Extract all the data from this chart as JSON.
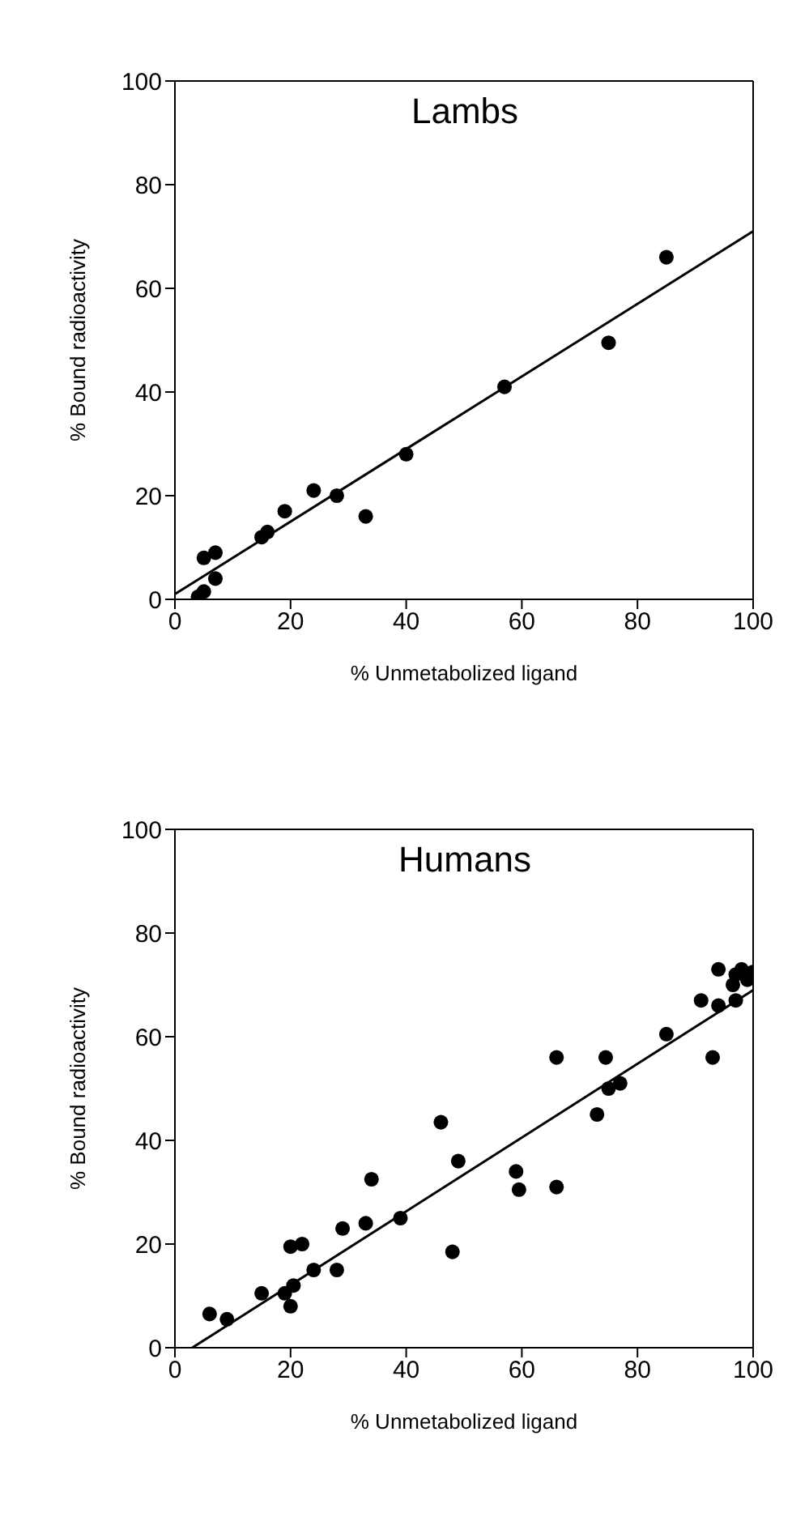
{
  "chart_data": [
    {
      "type": "scatter",
      "title": "Lambs",
      "xlabel": "% Unmetabolized ligand",
      "ylabel": "% Bound radioactivity",
      "xlim": [
        0,
        100
      ],
      "xticks": [
        0,
        20,
        40,
        60,
        80,
        100
      ],
      "ylim": [
        0,
        100
      ],
      "yticks": [
        0,
        20,
        40,
        60,
        80,
        100
      ],
      "grid": false,
      "legend": false,
      "series": [
        {
          "marker": "circle",
          "color": "#000000",
          "x": [
            4,
            5,
            5,
            7,
            7,
            15,
            16,
            19,
            24,
            28,
            33,
            40,
            57,
            75,
            85
          ],
          "values": [
            0.5,
            1.5,
            8,
            9,
            4,
            12,
            13,
            17,
            21,
            20,
            16,
            28,
            41,
            49.5,
            66
          ]
        },
        {
          "type": "line",
          "marker": "none",
          "color": "#000000",
          "x": [
            0,
            100
          ],
          "values": [
            1,
            71
          ]
        }
      ]
    },
    {
      "type": "scatter",
      "title": "Humans",
      "xlabel": "% Unmetabolized ligand",
      "ylabel": "% Bound radioactivity",
      "xlim": [
        0,
        100
      ],
      "xticks": [
        0,
        20,
        40,
        60,
        80,
        100
      ],
      "ylim": [
        0,
        100
      ],
      "yticks": [
        0,
        20,
        40,
        60,
        80,
        100
      ],
      "grid": false,
      "legend": false,
      "series": [
        {
          "marker": "circle",
          "color": "#000000",
          "x": [
            6,
            9,
            15,
            19,
            20,
            20,
            20.5,
            22,
            24,
            28,
            29,
            33,
            34,
            39,
            46,
            48,
            49,
            59,
            59.5,
            66,
            66,
            73,
            74,
            74.5,
            75,
            77,
            85,
            91,
            93,
            94,
            94,
            96,
            96.5,
            97,
            97,
            98,
            100,
            99
          ],
          "values": [
            6.5,
            5.5,
            10.5,
            10.5,
            19.5,
            8,
            12,
            20,
            15,
            15,
            23,
            24,
            32.5,
            25,
            43.5,
            18.5,
            36,
            34,
            30.5,
            31,
            56,
            45,
            null,
            56,
            50,
            51,
            60.5,
            67,
            56,
            73,
            66,
            null,
            70,
            67,
            72,
            73,
            72.5,
            71
          ]
        },
        {
          "type": "line",
          "marker": "none",
          "color": "#000000",
          "x": [
            3,
            100
          ],
          "values": [
            0,
            69
          ]
        }
      ]
    }
  ]
}
